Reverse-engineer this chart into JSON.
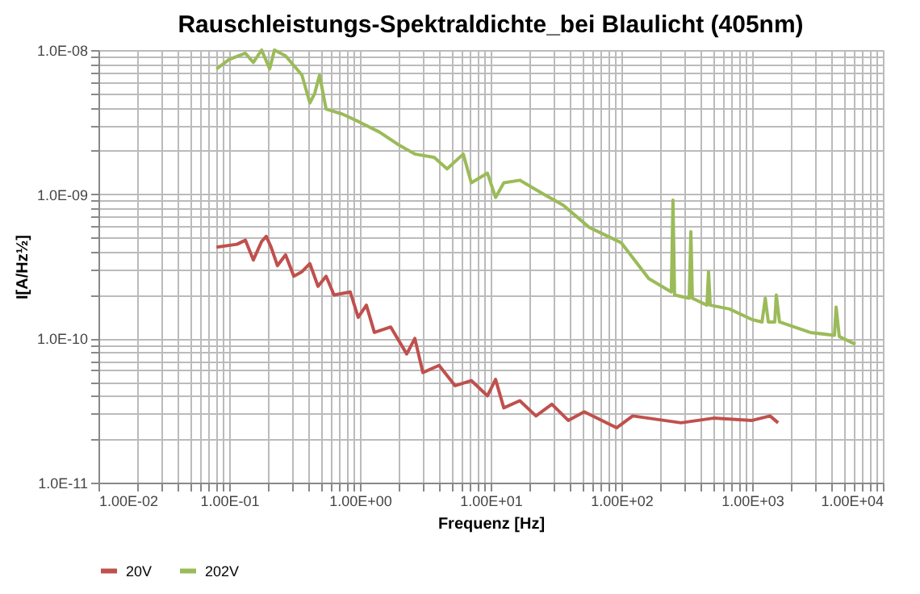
{
  "chart_data": {
    "type": "line",
    "title": "Rauschleistungs-Spektraldichte_bei Blaulicht (405nm)",
    "xlabel": "Frequenz [Hz]",
    "ylabel": "I[A/Hz½]",
    "log": "xy",
    "grid": true,
    "legend": "bottom",
    "marker": "none",
    "line_style": "solid",
    "xlim": [
      0.01,
      10000
    ],
    "ylim": [
      1e-11,
      1e-08
    ],
    "xticks": [
      {
        "value": 0.01,
        "label": "1.00E-02"
      },
      {
        "value": 0.02,
        "label": null
      },
      {
        "value": 0.03,
        "label": null
      },
      {
        "value": 0.04,
        "label": null
      },
      {
        "value": 0.05,
        "label": null
      },
      {
        "value": 0.06,
        "label": null
      },
      {
        "value": 0.07,
        "label": null
      },
      {
        "value": 0.08,
        "label": null
      },
      {
        "value": 0.09,
        "label": null
      },
      {
        "value": 0.1,
        "label": "1.00E-01"
      },
      {
        "value": 0.2,
        "label": null
      },
      {
        "value": 0.3,
        "label": null
      },
      {
        "value": 0.4,
        "label": null
      },
      {
        "value": 0.5,
        "label": null
      },
      {
        "value": 0.6,
        "label": null
      },
      {
        "value": 0.7,
        "label": null
      },
      {
        "value": 0.8,
        "label": null
      },
      {
        "value": 0.9,
        "label": null
      },
      {
        "value": 1,
        "label": "1.00E+00"
      },
      {
        "value": 2,
        "label": null
      },
      {
        "value": 3,
        "label": null
      },
      {
        "value": 4,
        "label": null
      },
      {
        "value": 5,
        "label": null
      },
      {
        "value": 6,
        "label": null
      },
      {
        "value": 7,
        "label": null
      },
      {
        "value": 8,
        "label": null
      },
      {
        "value": 9,
        "label": null
      },
      {
        "value": 10,
        "label": "1.00E+01"
      },
      {
        "value": 20,
        "label": null
      },
      {
        "value": 30,
        "label": null
      },
      {
        "value": 40,
        "label": null
      },
      {
        "value": 50,
        "label": null
      },
      {
        "value": 60,
        "label": null
      },
      {
        "value": 70,
        "label": null
      },
      {
        "value": 80,
        "label": null
      },
      {
        "value": 90,
        "label": null
      },
      {
        "value": 100,
        "label": "1.00E+02"
      },
      {
        "value": 200,
        "label": null
      },
      {
        "value": 300,
        "label": null
      },
      {
        "value": 400,
        "label": null
      },
      {
        "value": 500,
        "label": null
      },
      {
        "value": 600,
        "label": null
      },
      {
        "value": 700,
        "label": null
      },
      {
        "value": 800,
        "label": null
      },
      {
        "value": 900,
        "label": null
      },
      {
        "value": 1000,
        "label": "1.00E+03"
      },
      {
        "value": 2000,
        "label": null
      },
      {
        "value": 3000,
        "label": null
      },
      {
        "value": 4000,
        "label": null
      },
      {
        "value": 5000,
        "label": null
      },
      {
        "value": 6000,
        "label": null
      },
      {
        "value": 7000,
        "label": null
      },
      {
        "value": 8000,
        "label": null
      },
      {
        "value": 9000,
        "label": null
      },
      {
        "value": 10000,
        "label": "1.00E+04"
      }
    ],
    "yticks": [
      {
        "value": 1e-11,
        "label": "1.0E-11"
      },
      {
        "value": 2e-11,
        "label": null
      },
      {
        "value": 3e-11,
        "label": null
      },
      {
        "value": 4e-11,
        "label": null
      },
      {
        "value": 5e-11,
        "label": null
      },
      {
        "value": 6e-11,
        "label": null
      },
      {
        "value": 7e-11,
        "label": null
      },
      {
        "value": 8e-11,
        "label": null
      },
      {
        "value": 9e-11,
        "label": null
      },
      {
        "value": 1e-10,
        "label": "1.0E-10"
      },
      {
        "value": 2e-10,
        "label": null
      },
      {
        "value": 3e-10,
        "label": null
      },
      {
        "value": 4e-10,
        "label": null
      },
      {
        "value": 5e-10,
        "label": null
      },
      {
        "value": 6e-10,
        "label": null
      },
      {
        "value": 7e-10,
        "label": null
      },
      {
        "value": 8e-10,
        "label": null
      },
      {
        "value": 9e-10,
        "label": null
      },
      {
        "value": 1e-09,
        "label": "1.0E-09"
      },
      {
        "value": 2e-09,
        "label": null
      },
      {
        "value": 3e-09,
        "label": null
      },
      {
        "value": 4e-09,
        "label": null
      },
      {
        "value": 5e-09,
        "label": null
      },
      {
        "value": 6e-09,
        "label": null
      },
      {
        "value": 7e-09,
        "label": null
      },
      {
        "value": 8e-09,
        "label": null
      },
      {
        "value": 9e-09,
        "label": null
      },
      {
        "value": 1e-08,
        "label": "1.0E-08"
      }
    ],
    "series": [
      {
        "name": "20V",
        "color": "#c0504d",
        "x": [
          0.08,
          0.115,
          0.133,
          0.153,
          0.177,
          0.192,
          0.209,
          0.234,
          0.27,
          0.312,
          0.36,
          0.414,
          0.478,
          0.551,
          0.634,
          0.843,
          0.97,
          1.12,
          1.29,
          1.72,
          2.28,
          2.63,
          3.03,
          4.03,
          5.35,
          7.11,
          9.45,
          10.9,
          12.6,
          16.7,
          22.2,
          29.4,
          39.2,
          52,
          91.8,
          122,
          286,
          506,
          1000,
          1370,
          1580
        ],
        "values": [
          4.3e-10,
          4.5e-10,
          4.8e-10,
          3.5e-10,
          4.7e-10,
          5.1e-10,
          4.3e-10,
          3.2e-10,
          3.8e-10,
          2.7e-10,
          2.9e-10,
          3.3e-10,
          2.3e-10,
          2.7e-10,
          2e-10,
          2.1e-10,
          1.4e-10,
          1.7e-10,
          1.1e-10,
          1.2e-10,
          7.8e-11,
          1e-10,
          5.8e-11,
          6.5e-11,
          4.7e-11,
          5.1e-11,
          4e-11,
          5.2e-11,
          3.3e-11,
          3.7e-11,
          2.9e-11,
          3.5e-11,
          2.7e-11,
          3.1e-11,
          2.4e-11,
          2.9e-11,
          2.6e-11,
          2.8e-11,
          2.7e-11,
          2.9e-11,
          2.6e-11
        ]
      },
      {
        "name": "202V",
        "color": "#9bbb59",
        "x": [
          0.08,
          0.1,
          0.133,
          0.153,
          0.177,
          0.204,
          0.222,
          0.27,
          0.36,
          0.414,
          0.451,
          0.491,
          0.551,
          0.731,
          0.97,
          1.41,
          1.98,
          2.63,
          3.7,
          4.64,
          6.17,
          7.11,
          9.45,
          10.9,
          12.6,
          16.7,
          25.5,
          35.9,
          56.6,
          100,
          162,
          241,
          248,
          255,
          330,
          340,
          349,
          451,
          464,
          478,
          672,
          1000,
          1190,
          1260,
          1330,
          1490,
          1530,
          1620,
          2780,
          4260,
          4390,
          4640,
          6170
        ],
        "values": [
          7.4e-09,
          8.6e-09,
          9.5e-09,
          8.2e-09,
          1e-08,
          7.4e-09,
          1e-08,
          9.1e-09,
          6.7e-09,
          4.3e-09,
          5e-09,
          6.7e-09,
          3.9e-09,
          3.6e-09,
          3.2e-09,
          2.7e-09,
          2.2e-09,
          1.9e-09,
          1.8e-09,
          1.5e-09,
          1.9e-09,
          1.2e-09,
          1.4e-09,
          9.5e-10,
          1.2e-09,
          1.25e-09,
          1e-09,
          8.4e-10,
          5.9e-10,
          4.6e-10,
          2.6e-10,
          2.1e-10,
          9.1e-10,
          2e-10,
          1.9e-10,
          5.5e-10,
          1.9e-10,
          1.7e-10,
          2.9e-10,
          1.7e-10,
          1.6e-10,
          1.35e-10,
          1.3e-10,
          1.9e-10,
          1.3e-10,
          1.3e-10,
          2e-10,
          1.3e-10,
          1.1e-10,
          1.05e-10,
          1.65e-10,
          1.03e-10,
          9.1e-11
        ]
      }
    ]
  }
}
